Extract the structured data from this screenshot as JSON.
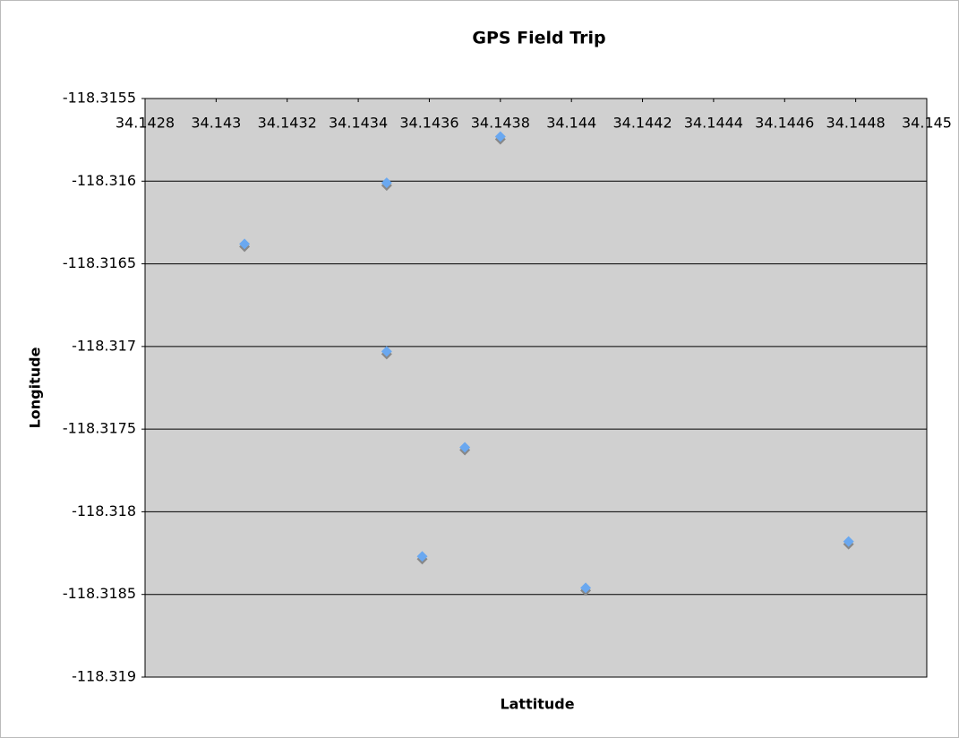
{
  "chart_data": {
    "type": "scatter",
    "title": "GPS Field Trip",
    "x_label": "Lattitude",
    "y_label": "Longitude",
    "series": [
      {
        "name": "Longitude",
        "color": "#6aa8f0",
        "x": [
          34.14308,
          34.14348,
          34.1438,
          34.14348,
          34.1437,
          34.14358,
          34.14404,
          34.14478
        ],
        "values": [
          -118.31638,
          -118.31601,
          -118.31573,
          -118.31703,
          -118.31761,
          -118.31827,
          -118.31846,
          -118.31818
        ]
      }
    ],
    "xlim": [
      34.1428,
      34.145
    ],
    "xticks": [
      34.1428,
      34.143,
      34.1432,
      34.1434,
      34.1436,
      34.1438,
      34.144,
      34.1442,
      34.1444,
      34.1446,
      34.1448,
      34.145
    ],
    "ylim": [
      -118.319,
      -118.3155
    ],
    "yticks": [
      -118.3155,
      -118.316,
      -118.3165,
      -118.317,
      -118.3175,
      -118.318,
      -118.3185,
      -118.319
    ],
    "grid": true
  }
}
